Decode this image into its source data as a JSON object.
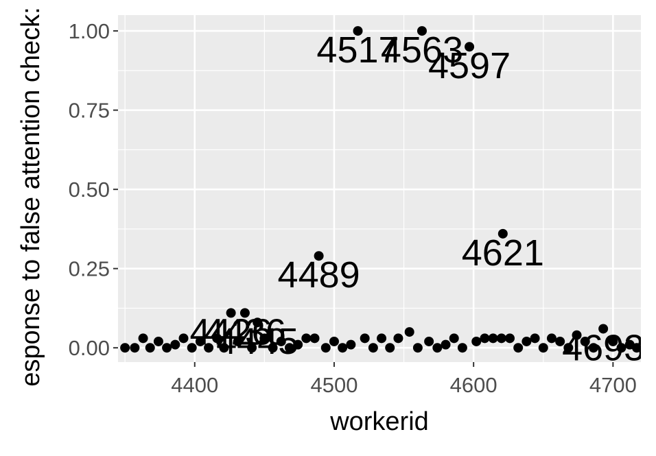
{
  "chart_data": {
    "type": "scatter",
    "title": "",
    "xlabel": "workerid",
    "ylabel": "esponse to false attention check:",
    "xlim": [
      4345,
      4720
    ],
    "ylim": [
      -0.045,
      1.05
    ],
    "x_ticks": [
      4400,
      4500,
      4600,
      4700
    ],
    "y_ticks": [
      0.0,
      0.25,
      0.5,
      0.75,
      1.0
    ],
    "x_tick_labels": [
      "4400",
      "4500",
      "4600",
      "4700"
    ],
    "y_tick_labels": [
      "0.00",
      "0.25",
      "0.50",
      "0.75",
      "1.00"
    ],
    "grid": true,
    "legend": "none",
    "colors": {
      "panel": "#ebebeb",
      "grid": "#ffffff",
      "point": "#000000",
      "axis_text": "#4d4d4d",
      "axis_title": "#000000"
    },
    "labeled_points": [
      {
        "x": 4517,
        "y": 1.0,
        "label": "4517"
      },
      {
        "x": 4563,
        "y": 1.0,
        "label": "4563"
      },
      {
        "x": 4597,
        "y": 0.95,
        "label": "4597"
      },
      {
        "x": 4621,
        "y": 0.36,
        "label": "4621"
      },
      {
        "x": 4489,
        "y": 0.29,
        "label": "4489"
      },
      {
        "x": 4426,
        "y": 0.11,
        "label": "4426"
      },
      {
        "x": 4436,
        "y": 0.11,
        "label": "4436"
      },
      {
        "x": 4445,
        "y": 0.08,
        "label": "4445"
      },
      {
        "x": 4693,
        "y": 0.06,
        "label": "4693"
      }
    ],
    "low_points": [
      {
        "x": 4350,
        "y": 0.0
      },
      {
        "x": 4357,
        "y": 0.0
      },
      {
        "x": 4363,
        "y": 0.03
      },
      {
        "x": 4368,
        "y": 0.0
      },
      {
        "x": 4374,
        "y": 0.02
      },
      {
        "x": 4380,
        "y": 0.0
      },
      {
        "x": 4386,
        "y": 0.01
      },
      {
        "x": 4392,
        "y": 0.03
      },
      {
        "x": 4398,
        "y": 0.0
      },
      {
        "x": 4404,
        "y": 0.02
      },
      {
        "x": 4410,
        "y": 0.0
      },
      {
        "x": 4416,
        "y": 0.03
      },
      {
        "x": 4421,
        "y": 0.0
      },
      {
        "x": 4431,
        "y": 0.02
      },
      {
        "x": 4441,
        "y": 0.0
      },
      {
        "x": 4450,
        "y": 0.03
      },
      {
        "x": 4456,
        "y": 0.0
      },
      {
        "x": 4462,
        "y": 0.02
      },
      {
        "x": 4468,
        "y": 0.0
      },
      {
        "x": 4474,
        "y": 0.01
      },
      {
        "x": 4480,
        "y": 0.03
      },
      {
        "x": 4486,
        "y": 0.03
      },
      {
        "x": 4494,
        "y": 0.0
      },
      {
        "x": 4500,
        "y": 0.02
      },
      {
        "x": 4506,
        "y": 0.0
      },
      {
        "x": 4512,
        "y": 0.01
      },
      {
        "x": 4522,
        "y": 0.03
      },
      {
        "x": 4528,
        "y": 0.0
      },
      {
        "x": 4534,
        "y": 0.03
      },
      {
        "x": 4540,
        "y": 0.0
      },
      {
        "x": 4546,
        "y": 0.03
      },
      {
        "x": 4554,
        "y": 0.05
      },
      {
        "x": 4560,
        "y": 0.0
      },
      {
        "x": 4568,
        "y": 0.02
      },
      {
        "x": 4574,
        "y": 0.0
      },
      {
        "x": 4580,
        "y": 0.01
      },
      {
        "x": 4586,
        "y": 0.03
      },
      {
        "x": 4592,
        "y": 0.0
      },
      {
        "x": 4602,
        "y": 0.02
      },
      {
        "x": 4608,
        "y": 0.03
      },
      {
        "x": 4614,
        "y": 0.03
      },
      {
        "x": 4620,
        "y": 0.03
      },
      {
        "x": 4626,
        "y": 0.03
      },
      {
        "x": 4632,
        "y": 0.0
      },
      {
        "x": 4638,
        "y": 0.02
      },
      {
        "x": 4644,
        "y": 0.03
      },
      {
        "x": 4650,
        "y": 0.0
      },
      {
        "x": 4656,
        "y": 0.03
      },
      {
        "x": 4662,
        "y": 0.02
      },
      {
        "x": 4668,
        "y": 0.0
      },
      {
        "x": 4674,
        "y": 0.04
      },
      {
        "x": 4680,
        "y": 0.02
      },
      {
        "x": 4686,
        "y": 0.0
      },
      {
        "x": 4700,
        "y": 0.02
      },
      {
        "x": 4706,
        "y": 0.0
      },
      {
        "x": 4712,
        "y": 0.01
      },
      {
        "x": 4717,
        "y": 0.0
      }
    ]
  }
}
